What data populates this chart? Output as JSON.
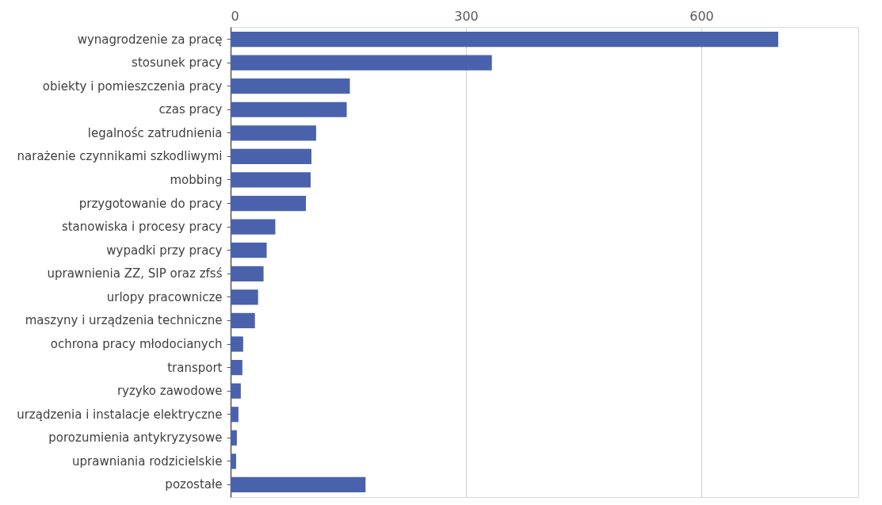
{
  "chart_data": {
    "type": "bar",
    "orientation": "horizontal",
    "categories": [
      "wynagrodzenie za pracę",
      "stosunek pracy",
      "obiekty i pomieszczenia pracy",
      "czas pracy",
      "legalnośc zatrudnienia",
      "narażenie czynnikami szkodliwymi",
      "mobbing",
      "przygotowanie do pracy",
      "stanowiska i procesy pracy",
      "wypadki przy pracy",
      "uprawnienia ZZ, SIP oraz zfsś",
      "urlopy pracownicze",
      "maszyny i urządzenia techniczne",
      "ochrona pracy młodocianych",
      "transport",
      "ryzyko zawodowe",
      "urządzenia i instalacje elektryczne",
      "porozumienia antykryzysowe",
      "uprawniania rodzicielskie",
      "pozostałe"
    ],
    "values": [
      698,
      333,
      152,
      148,
      109,
      103,
      102,
      96,
      57,
      46,
      42,
      35,
      31,
      16,
      15,
      13,
      10,
      8,
      7,
      172
    ],
    "color": "#4a62ab",
    "xlim": [
      0,
      800
    ],
    "xticks": [
      0,
      300,
      600
    ],
    "grid": "x"
  }
}
